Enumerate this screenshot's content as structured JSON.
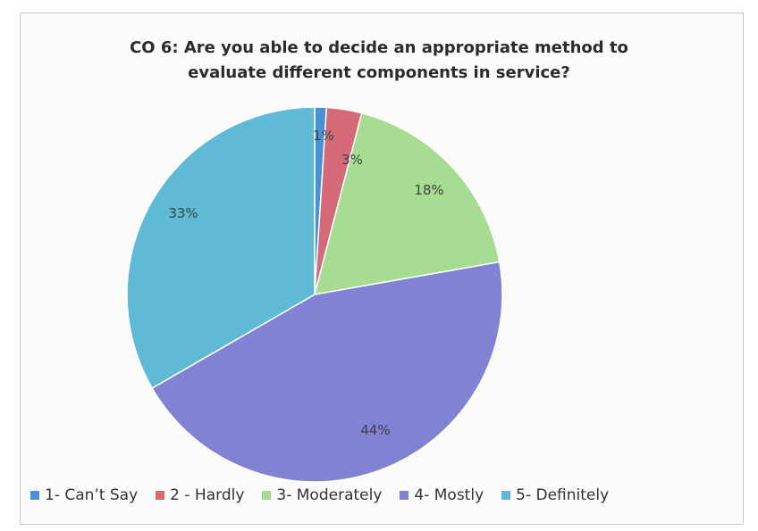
{
  "chart_data": {
    "type": "pie",
    "title": [
      "CO 6: Are you able to decide an appropriate method to",
      "evaluate different components in service?"
    ],
    "categories": [
      "1- Can’t Say",
      "2 - Hardly",
      "3- Moderately",
      "4- Mostly",
      "5- Definitely"
    ],
    "values": [
      1,
      3,
      18,
      44,
      33
    ],
    "data_labels": [
      "1%",
      "3%",
      "18%",
      "44%",
      "33%"
    ],
    "colors": [
      "#4a90d6",
      "#d46a78",
      "#a6dd93",
      "#8282d4",
      "#5fbad6"
    ],
    "legend_position": "bottom"
  }
}
